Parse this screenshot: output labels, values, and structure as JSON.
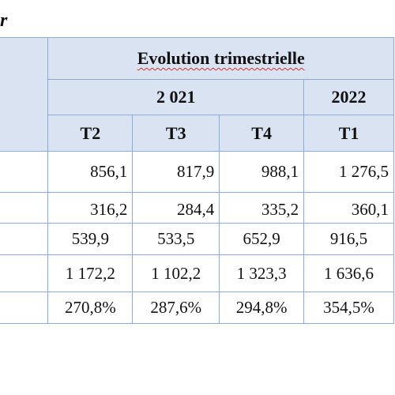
{
  "corner_text": "r",
  "table": {
    "title": "Evolution trimestrielle",
    "years": [
      {
        "label": "2 021"
      },
      {
        "label": "2022"
      }
    ],
    "quarters": [
      "T2",
      "T3",
      "T4",
      "T1"
    ],
    "rows": [
      {
        "values": [
          "856,1",
          "817,9",
          "988,1",
          "1 276,5"
        ]
      },
      {
        "values": [
          "316,2",
          "284,4",
          "335,2",
          "360,1"
        ]
      },
      {
        "values": [
          "539,9",
          "533,5",
          "652,9",
          "916,5"
        ]
      },
      {
        "values": [
          "1 172,2",
          "1 102,2",
          "1 323,3",
          "1 636,6"
        ]
      },
      {
        "values": [
          "270,8%",
          "287,6%",
          "294,8%",
          "354,5%"
        ]
      }
    ]
  }
}
